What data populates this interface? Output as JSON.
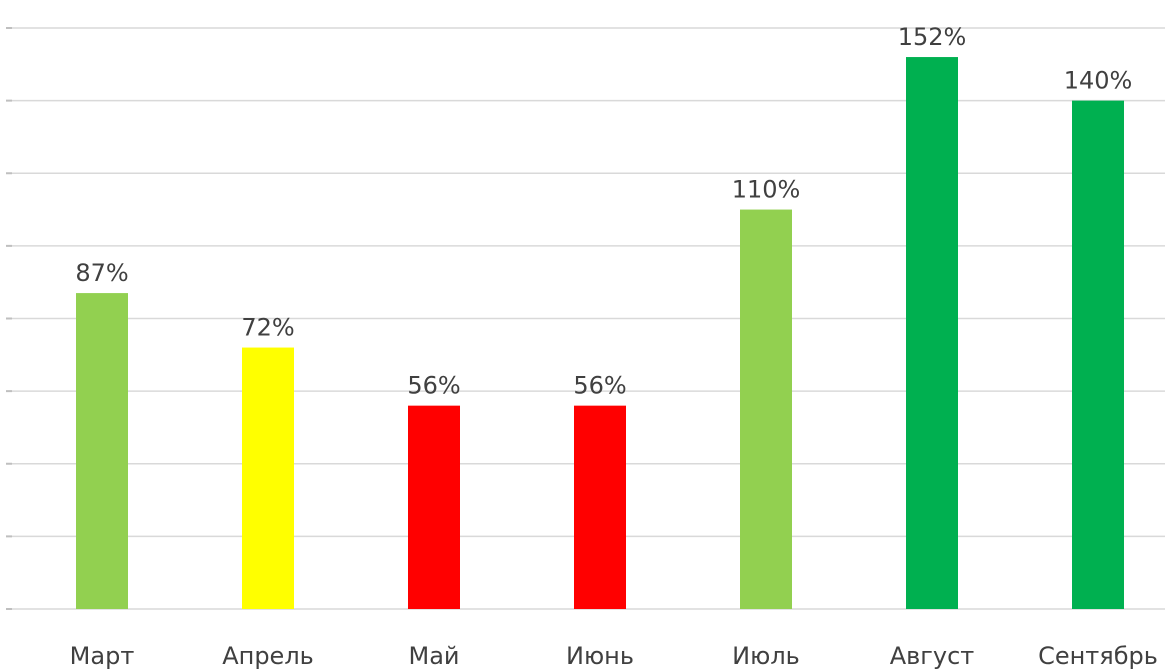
{
  "chart_data": {
    "type": "bar",
    "categories": [
      "Март",
      "Апрель",
      "Май",
      "Июнь",
      "Июль",
      "Август",
      "Сентябрь"
    ],
    "values": [
      87,
      72,
      56,
      56,
      110,
      152,
      140
    ],
    "data_labels": [
      "87%",
      "72%",
      "56%",
      "56%",
      "110%",
      "152%",
      "140%"
    ],
    "colors": [
      "#92d050",
      "#ffff00",
      "#ff0000",
      "#ff0000",
      "#92d050",
      "#00b050",
      "#00b050"
    ],
    "unit": "%",
    "ylim": [
      0,
      160
    ],
    "y_grid_step": 20,
    "grid": true,
    "title": "",
    "xlabel": "",
    "ylabel": ""
  },
  "colors": {
    "gridline": "#d9d9d9",
    "label_text": "#404040"
  }
}
